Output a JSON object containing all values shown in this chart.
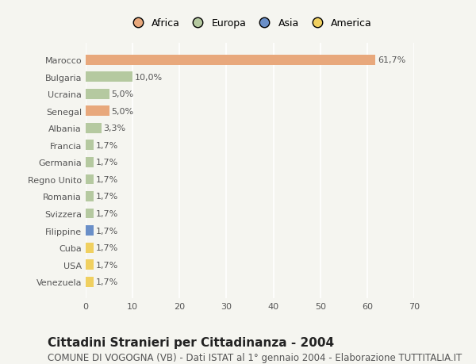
{
  "countries": [
    "Marocco",
    "Bulgaria",
    "Ucraina",
    "Senegal",
    "Albania",
    "Francia",
    "Germania",
    "Regno Unito",
    "Romania",
    "Svizzera",
    "Filippine",
    "Cuba",
    "USA",
    "Venezuela"
  ],
  "values": [
    61.7,
    10.0,
    5.0,
    5.0,
    3.3,
    1.7,
    1.7,
    1.7,
    1.7,
    1.7,
    1.7,
    1.7,
    1.7,
    1.7
  ],
  "labels": [
    "61,7%",
    "10,0%",
    "5,0%",
    "5,0%",
    "3,3%",
    "1,7%",
    "1,7%",
    "1,7%",
    "1,7%",
    "1,7%",
    "1,7%",
    "1,7%",
    "1,7%",
    "1,7%"
  ],
  "continents": [
    "Africa",
    "Europa",
    "Europa",
    "Africa",
    "Europa",
    "Europa",
    "Europa",
    "Europa",
    "Europa",
    "Europa",
    "Asia",
    "America",
    "America",
    "America"
  ],
  "colors": {
    "Africa": "#E8A87C",
    "Europa": "#B5C9A0",
    "Asia": "#6A8FC8",
    "America": "#F0D060"
  },
  "legend_order": [
    "Africa",
    "Europa",
    "Asia",
    "America"
  ],
  "legend_colors": [
    "#E8A87C",
    "#B5C9A0",
    "#6A8FC8",
    "#F0D060"
  ],
  "xlim": [
    0,
    70
  ],
  "xticks": [
    0,
    10,
    20,
    30,
    40,
    50,
    60,
    70
  ],
  "title": "Cittadini Stranieri per Cittadinanza - 2004",
  "subtitle": "COMUNE DI VOGOGNA (VB) - Dati ISTAT al 1° gennaio 2004 - Elaborazione TUTTITALIA.IT",
  "bg_color": "#f5f5f0",
  "bar_height": 0.6,
  "title_fontsize": 11,
  "subtitle_fontsize": 8.5,
  "label_fontsize": 8,
  "tick_fontsize": 8,
  "legend_fontsize": 9
}
